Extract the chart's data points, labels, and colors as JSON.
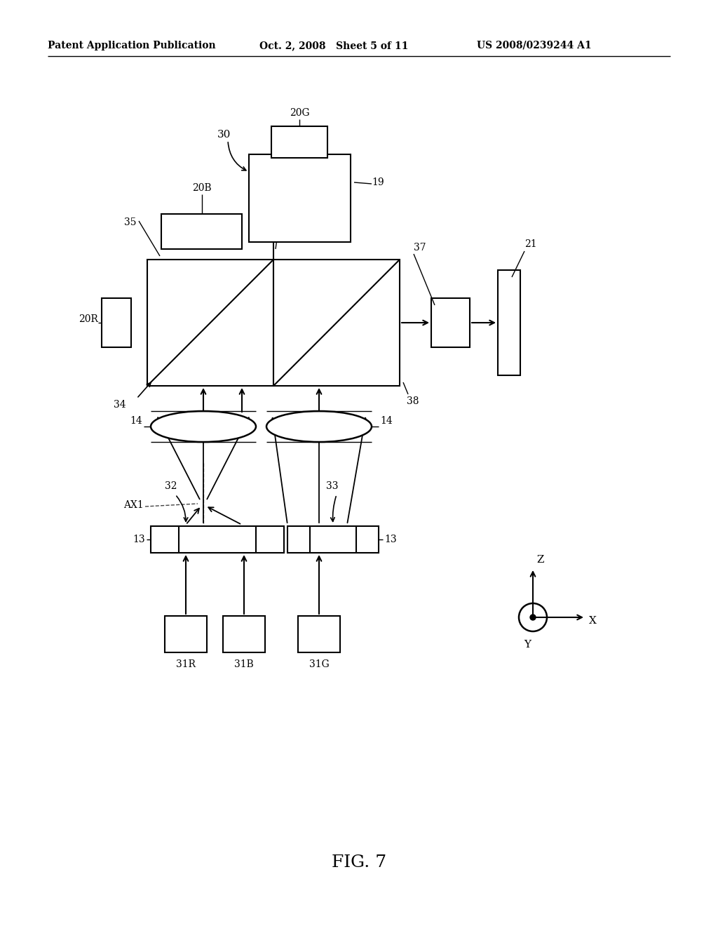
{
  "background_color": "#ffffff",
  "line_color": "#000000",
  "header_left": "Patent Application Publication",
  "header_mid": "Oct. 2, 2008   Sheet 5 of 11",
  "header_right": "US 2008/0239244 A1",
  "figure_label": "FIG. 7"
}
